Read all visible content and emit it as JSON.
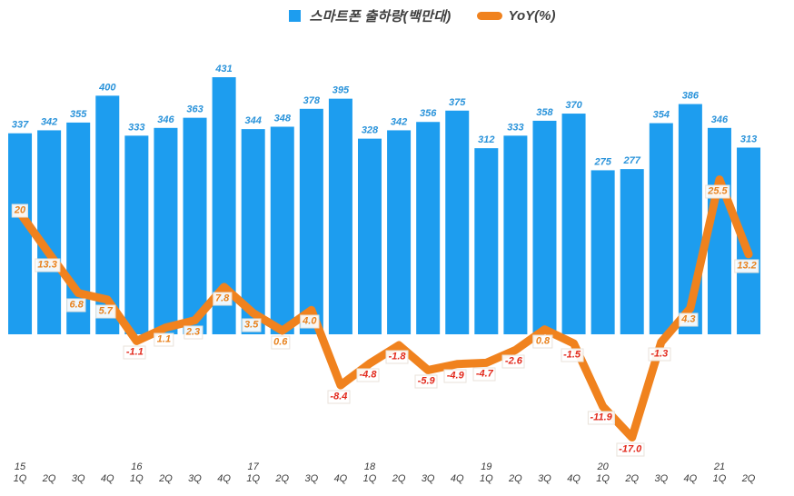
{
  "legend": {
    "bars_label": "스마트폰 출하량(백만대)",
    "line_label": "YoY(%)"
  },
  "colors": {
    "bar": "#1d9def",
    "bar_value_label": "#2a93da",
    "line": "#f0821e",
    "line_label_positive": "#e8821e",
    "line_label_negative": "#e22a1d",
    "axis_text": "#3a3a3a",
    "legend_text": "#3f3f3f",
    "background": "#ffffff"
  },
  "chart_data": {
    "type": "bar",
    "subtype": "bar+line combo, dual axis, shared zero baseline",
    "categories": [
      "1Q",
      "2Q",
      "3Q",
      "4Q",
      "1Q",
      "2Q",
      "3Q",
      "4Q",
      "1Q",
      "2Q",
      "3Q",
      "4Q",
      "1Q",
      "2Q",
      "3Q",
      "4Q",
      "1Q",
      "2Q",
      "3Q",
      "4Q",
      "1Q",
      "2Q",
      "3Q",
      "4Q",
      "1Q",
      "2Q"
    ],
    "year_labels": [
      {
        "index": 0,
        "label": "15"
      },
      {
        "index": 4,
        "label": "16"
      },
      {
        "index": 8,
        "label": "17"
      },
      {
        "index": 12,
        "label": "18"
      },
      {
        "index": 16,
        "label": "19"
      },
      {
        "index": 20,
        "label": "20"
      },
      {
        "index": 24,
        "label": "21"
      }
    ],
    "series": [
      {
        "name": "스마트폰 출하량(백만대)",
        "type": "bar",
        "values": [
          337,
          342,
          355,
          400,
          333,
          346,
          363,
          431,
          344,
          348,
          378,
          395,
          328,
          342,
          356,
          375,
          312,
          333,
          358,
          370,
          275,
          277,
          354,
          386,
          346,
          313
        ]
      },
      {
        "name": "YoY(%)",
        "type": "line",
        "values": [
          20,
          13.3,
          6.8,
          5.7,
          -1.1,
          1.1,
          2.3,
          7.8,
          3.5,
          0.6,
          4.0,
          -8.4,
          -4.8,
          -1.8,
          -5.9,
          -4.9,
          -4.7,
          -2.6,
          0.8,
          -1.5,
          -11.9,
          -17.0,
          -1.3,
          4.3,
          25.5,
          13.2
        ],
        "display_labels": [
          "20",
          "13.3",
          "6.8",
          "5.7",
          "-1.1",
          "1.1",
          "2.3",
          "7.8",
          "3.5",
          "0.6",
          "4.0",
          "-8.4",
          "-4.8",
          "-1.8",
          "-5.9",
          "-4.9",
          "-4.7",
          "-2.6",
          "0.8",
          "-1.5",
          "-11.9",
          "-17.0",
          "-1.3",
          "4.3",
          "25.5",
          "13.2"
        ]
      }
    ],
    "title": "",
    "xlabel": "",
    "ylabel": "",
    "primary_axis": {
      "min": 0,
      "visible": false,
      "data_labels": "above bars"
    },
    "secondary_axis": {
      "visible": false,
      "data_labels": "boxed, positive orange / negative red"
    },
    "grid": false,
    "legend_position": "top-center"
  }
}
